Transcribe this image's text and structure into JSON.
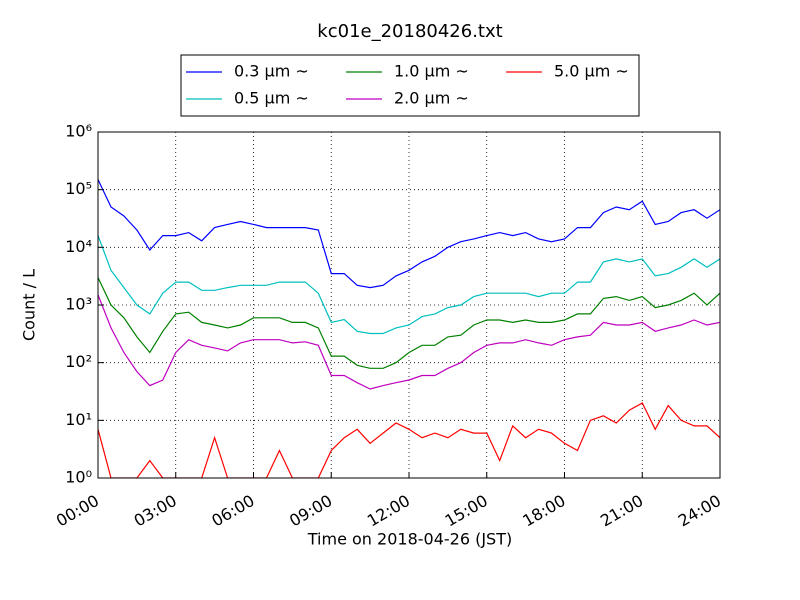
{
  "chart_data": {
    "type": "line",
    "title": "kc01e_20180426.txt",
    "x_label": "Time on 2018-04-26 (JST)",
    "y_label": "Count / L",
    "log_scale_y": true,
    "grid": true,
    "legend_position": "top",
    "x": [
      0,
      0.5,
      1,
      1.5,
      2,
      2.5,
      3,
      3.5,
      4,
      4.5,
      5,
      5.5,
      6,
      6.5,
      7,
      7.5,
      8,
      8.5,
      9,
      9.5,
      10,
      10.5,
      11,
      11.5,
      12,
      12.5,
      13,
      13.5,
      14,
      14.5,
      15,
      15.5,
      16,
      16.5,
      17,
      17.5,
      18,
      18.5,
      19,
      19.5,
      20,
      20.5,
      21,
      21.5,
      22,
      22.5,
      23,
      23.5,
      24
    ],
    "xlim": [
      0,
      24
    ],
    "xticks": [
      {
        "value": 0,
        "label": "00:00"
      },
      {
        "value": 3,
        "label": "03:00"
      },
      {
        "value": 6,
        "label": "06:00"
      },
      {
        "value": 9,
        "label": "09:00"
      },
      {
        "value": 12,
        "label": "12:00"
      },
      {
        "value": 15,
        "label": "15:00"
      },
      {
        "value": 18,
        "label": "18:00"
      },
      {
        "value": 21,
        "label": "21:00"
      },
      {
        "value": 24,
        "label": "24:00"
      }
    ],
    "ylim": [
      1,
      1000000
    ],
    "yticks": [
      {
        "value": 1,
        "label": "10⁰"
      },
      {
        "value": 10,
        "label": "10¹"
      },
      {
        "value": 100,
        "label": "10²"
      },
      {
        "value": 1000,
        "label": "10³"
      },
      {
        "value": 10000,
        "label": "10⁴"
      },
      {
        "value": 100000,
        "label": "10⁵"
      },
      {
        "value": 1000000,
        "label": "10⁶"
      }
    ],
    "series": [
      {
        "name": "0.3 μm ~",
        "color": "#0000ff",
        "values": [
          150000,
          50000,
          35000,
          20000,
          9000,
          16000,
          16000,
          18000,
          13000,
          22000,
          25000,
          28000,
          25000,
          22000,
          22000,
          22000,
          22000,
          20000,
          3500,
          3500,
          2200,
          2000,
          2200,
          3200,
          4000,
          5600,
          7000,
          10000,
          12500,
          14000,
          16000,
          18000,
          16000,
          18000,
          14000,
          12500,
          14000,
          22000,
          22000,
          40000,
          50000,
          45000,
          63000,
          25000,
          28000,
          40000,
          45000,
          32000,
          45000
        ]
      },
      {
        "name": "0.5 μm ~",
        "color": "#00bfbf",
        "values": [
          16000,
          4000,
          2000,
          1000,
          700,
          1600,
          2500,
          2500,
          1800,
          1800,
          2000,
          2200,
          2200,
          2200,
          2500,
          2500,
          2500,
          1600,
          500,
          560,
          350,
          320,
          320,
          400,
          450,
          630,
          700,
          900,
          1000,
          1400,
          1600,
          1600,
          1600,
          1600,
          1400,
          1600,
          1600,
          2500,
          2500,
          5600,
          6300,
          5600,
          6300,
          3200,
          3500,
          4500,
          6300,
          4500,
          6300
        ]
      },
      {
        "name": "1.0 μm ~",
        "color": "#008000",
        "values": [
          3000,
          1000,
          600,
          280,
          150,
          350,
          700,
          750,
          500,
          450,
          400,
          450,
          600,
          600,
          600,
          500,
          500,
          400,
          130,
          130,
          90,
          80,
          80,
          100,
          150,
          200,
          200,
          280,
          300,
          450,
          550,
          550,
          500,
          550,
          500,
          500,
          550,
          700,
          700,
          1300,
          1400,
          1200,
          1400,
          900,
          1000,
          1200,
          1600,
          1000,
          1600
        ]
      },
      {
        "name": "2.0 μm ~",
        "color": "#bf00bf",
        "values": [
          1500,
          400,
          150,
          70,
          40,
          50,
          150,
          250,
          200,
          180,
          160,
          220,
          250,
          250,
          250,
          220,
          230,
          200,
          60,
          60,
          45,
          35,
          40,
          45,
          50,
          60,
          60,
          80,
          100,
          150,
          200,
          220,
          220,
          250,
          220,
          200,
          250,
          280,
          300,
          500,
          450,
          450,
          500,
          350,
          400,
          450,
          550,
          450,
          500
        ]
      },
      {
        "name": "5.0 μm ~",
        "color": "#ff0000",
        "values": [
          7,
          1,
          1,
          1,
          2,
          1,
          1,
          1,
          1,
          5,
          1,
          1,
          1,
          1,
          3,
          1,
          1,
          1,
          3,
          5,
          7,
          4,
          6,
          9,
          7,
          5,
          6,
          5,
          7,
          6,
          6,
          2,
          8,
          5,
          7,
          6,
          4,
          3,
          10,
          12,
          9,
          15,
          20,
          7,
          18,
          10,
          8,
          8,
          5
        ]
      }
    ]
  }
}
